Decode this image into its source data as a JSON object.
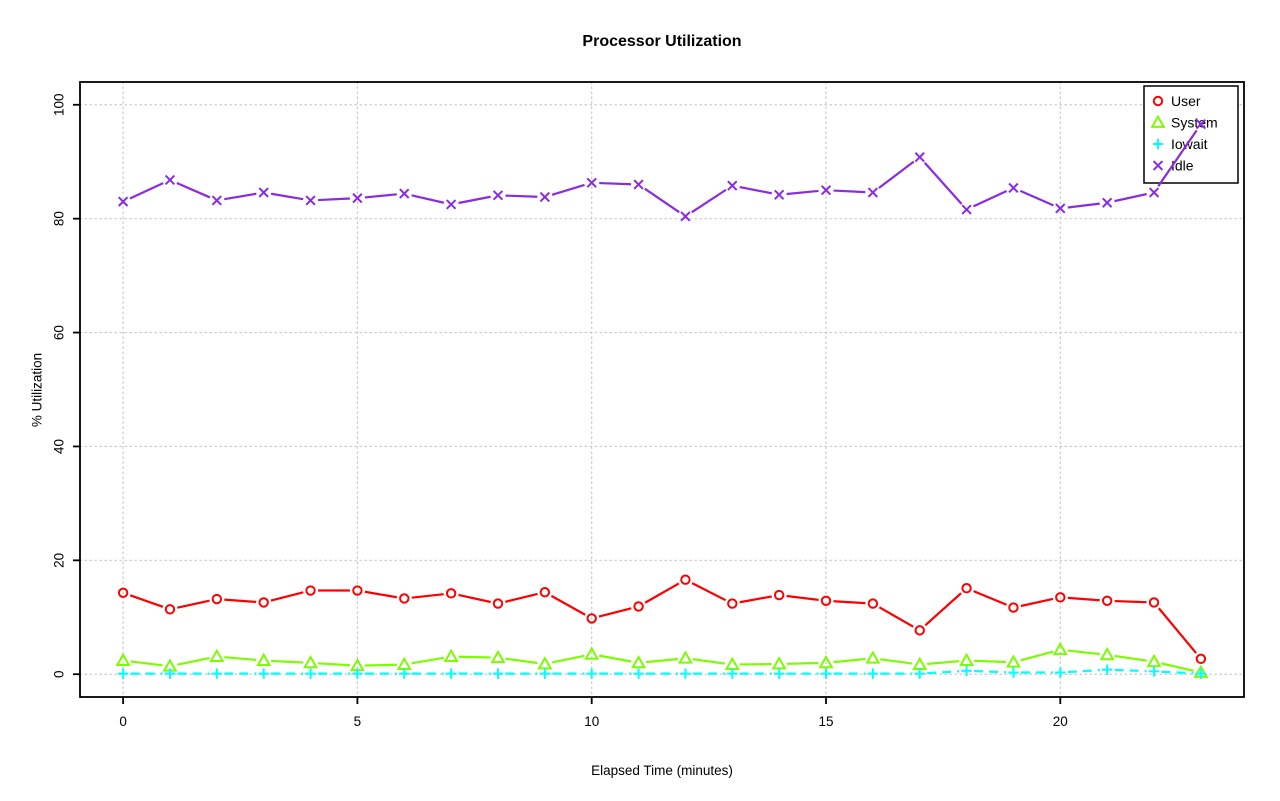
{
  "chart_data": {
    "type": "line",
    "title": "Processor Utilization",
    "xlabel": "Elapsed Time (minutes)",
    "ylabel": "% Utilization",
    "xlim": [
      0,
      23
    ],
    "ylim": [
      0,
      100
    ],
    "x_ticks": [
      0,
      5,
      10,
      15,
      20
    ],
    "y_ticks": [
      0,
      20,
      40,
      60,
      80,
      100
    ],
    "grid": true,
    "legend_position": "topright",
    "colors": {
      "grid": "#c9c9c9",
      "axis": "#000000",
      "background": "#ffffff"
    },
    "x": [
      0,
      1,
      2,
      3,
      4,
      5,
      6,
      7,
      8,
      9,
      10,
      11,
      12,
      13,
      14,
      15,
      16,
      17,
      18,
      19,
      20,
      21,
      22,
      23
    ],
    "series": [
      {
        "name": "User",
        "color": "#ff0000",
        "marker": "circle",
        "line": "solid",
        "values": [
          14.3,
          11.4,
          13.2,
          12.6,
          14.7,
          14.7,
          13.3,
          14.2,
          12.4,
          14.4,
          9.8,
          11.9,
          16.6,
          12.4,
          13.9,
          12.9,
          12.4,
          7.7,
          15.1,
          11.7,
          13.5,
          12.9,
          12.6,
          2.7
        ]
      },
      {
        "name": "System",
        "color": "#7cfc00",
        "marker": "triangle",
        "line": "solid",
        "values": [
          2.4,
          1.4,
          3.1,
          2.4,
          2.0,
          1.5,
          1.7,
          3.1,
          2.9,
          1.8,
          3.5,
          2.0,
          2.8,
          1.7,
          1.8,
          2.0,
          2.8,
          1.7,
          2.4,
          2.1,
          4.3,
          3.4,
          2.2,
          0.3
        ]
      },
      {
        "name": "Iowait",
        "color": "#00ffff",
        "marker": "plus",
        "line": "dashed",
        "values": [
          0.1,
          0.1,
          0.1,
          0.1,
          0.1,
          0.1,
          0.1,
          0.1,
          0.1,
          0.1,
          0.1,
          0.1,
          0.1,
          0.1,
          0.1,
          0.1,
          0.1,
          0.1,
          0.6,
          0.3,
          0.3,
          0.8,
          0.5,
          0.1
        ]
      },
      {
        "name": "Idle",
        "color": "#8a2be2",
        "marker": "x",
        "line": "solid",
        "values": [
          83.0,
          86.8,
          83.2,
          84.6,
          83.2,
          83.6,
          84.4,
          82.5,
          84.1,
          83.8,
          86.3,
          86.0,
          80.4,
          85.8,
          84.2,
          85.0,
          84.6,
          90.8,
          81.6,
          85.4,
          81.8,
          82.8,
          84.6,
          96.6
        ]
      }
    ]
  }
}
